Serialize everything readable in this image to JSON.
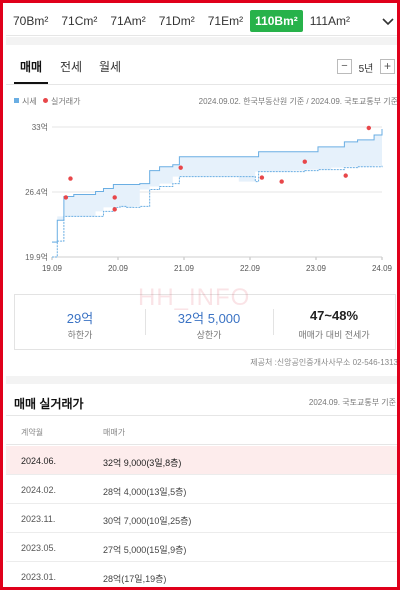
{
  "area_tabs": [
    "70Bm²",
    "71Cm²",
    "71Am²",
    "71Dm²",
    "71Em²",
    "110Bm²",
    "111Am²"
  ],
  "area_tab_active": "110Bm²",
  "trade_tabs": [
    "매매",
    "전세",
    "월세"
  ],
  "trade_tab_active": "매매",
  "period": "5년",
  "legend": {
    "sise": "시세",
    "real": "실거래가"
  },
  "source_note": "2024.09.02. 한국부동산원 기준 / 2024.09. 국토교통부 기준",
  "colors": {
    "accent_green": "#27b24a",
    "band": "#6aaee3",
    "real_dot": "#e8474a",
    "frame": "#e0001b"
  },
  "chart_data": {
    "type": "line",
    "y_unit": "억",
    "ylim": [
      19.9,
      33
    ],
    "yticks": [
      "33억",
      "26.4억",
      "19.9억"
    ],
    "x_labels": [
      "19.09",
      "20.09",
      "21.09",
      "22.09",
      "23.09",
      "24.09"
    ],
    "x_range": [
      2019.67,
      2024.67
    ],
    "series": [
      {
        "name": "시세",
        "kind": "band",
        "x": [
          2019.67,
          2019.75,
          2019.85,
          2020.0,
          2020.2,
          2020.33,
          2020.45,
          2020.6,
          2020.7,
          2020.8,
          2020.9,
          2021.0,
          2021.15,
          2021.3,
          2021.5,
          2021.6,
          2022.0,
          2022.5,
          2022.75,
          2022.8,
          2023.0,
          2023.3,
          2023.5,
          2023.7,
          2023.9,
          2024.1,
          2024.3,
          2024.55,
          2024.67
        ],
        "high": [
          21.4,
          23.6,
          26.0,
          26.2,
          26.2,
          26.5,
          26.8,
          27.2,
          27.2,
          27.2,
          27.2,
          27.3,
          28.6,
          29.0,
          29.2,
          30.0,
          30.0,
          30.0,
          30.0,
          30.5,
          30.5,
          30.5,
          30.5,
          31.0,
          31.0,
          31.5,
          31.7,
          32.2,
          32.8
        ],
        "low": [
          19.9,
          21.5,
          24.0,
          24.0,
          24.0,
          24.0,
          24.5,
          24.9,
          25.0,
          24.9,
          24.9,
          25.0,
          26.7,
          27.0,
          27.3,
          28.0,
          28.0,
          28.0,
          27.5,
          28.5,
          28.5,
          28.5,
          28.6,
          28.7,
          28.7,
          28.9,
          29.0,
          29.0,
          29.1
        ]
      },
      {
        "name": "실거래가",
        "kind": "points",
        "points": [
          [
            2019.88,
            25.9
          ],
          [
            2019.95,
            27.8
          ],
          [
            2020.62,
            25.9
          ],
          [
            2020.62,
            24.7
          ],
          [
            2021.62,
            28.9
          ],
          [
            2022.85,
            27.9
          ],
          [
            2023.15,
            27.5
          ],
          [
            2023.5,
            29.5
          ],
          [
            2024.12,
            28.1
          ],
          [
            2024.47,
            32.9
          ]
        ]
      }
    ],
    "grid": true,
    "legend_placement": "top-left"
  },
  "summary": {
    "lower": {
      "value": "29억",
      "label": "하한가"
    },
    "upper": {
      "value": "32억 5,000",
      "label": "상한가"
    },
    "ratio": {
      "value": "47~48%",
      "label": "매매가 대비 전세가"
    }
  },
  "watermark": "HH_INFO",
  "provider": "제공처 :신앙공인중개사사무소 02-546-1313",
  "real_trade": {
    "title": "매매 실거래가",
    "source": "2024.09. 국토교통부 기준",
    "headers": {
      "date": "계약월",
      "price": "매매가"
    },
    "rows": [
      {
        "date": "2024.06.",
        "price": "32억 9,000(3일,8층)"
      },
      {
        "date": "2024.02.",
        "price": "28억 4,000(13일,5층)"
      },
      {
        "date": "2023.11.",
        "price": "30억 7,000(10일,25층)"
      },
      {
        "date": "2023.05.",
        "price": "27억 5,000(15일,9층)"
      },
      {
        "date": "2023.01.",
        "price": "28억(17일,19층)"
      }
    ]
  }
}
